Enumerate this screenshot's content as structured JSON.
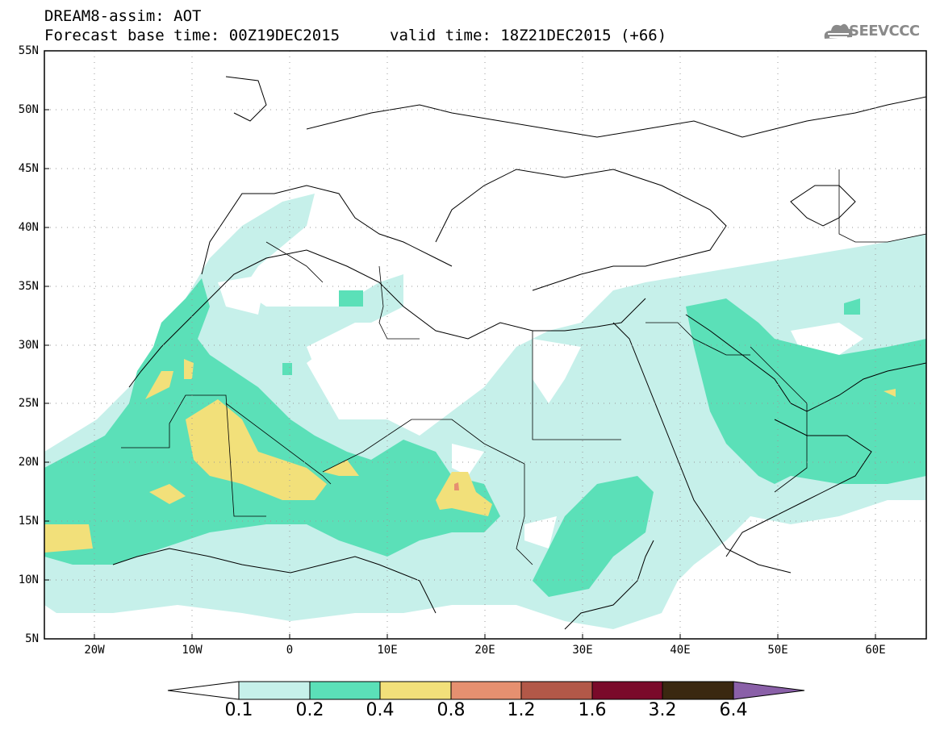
{
  "header": {
    "title": "DREAM8-assim: AOT",
    "forecast": "Forecast base time: 00Z19DEC2015",
    "valid": "valid time: 18Z21DEC2015 (+66)",
    "logo_text": "SEEVCCC"
  },
  "map": {
    "lat_labels": [
      "55N",
      "50N",
      "45N",
      "40N",
      "35N",
      "30N",
      "25N",
      "20N",
      "15N",
      "10N",
      "5N"
    ],
    "lon_labels": [
      "20W",
      "10W",
      "0",
      "10E",
      "20E",
      "30E",
      "40E",
      "50E",
      "60E"
    ]
  },
  "colorbar": {
    "labels": [
      "0.1",
      "0.2",
      "0.4",
      "0.8",
      "1.2",
      "1.6",
      "3.2",
      "6.4"
    ],
    "colors": [
      "#ffffff",
      "#c6f0ea",
      "#5be0b8",
      "#f2e07a",
      "#e69070",
      "#b25848",
      "#7a0a2a",
      "#3a2810",
      "#8a60a8"
    ]
  }
}
